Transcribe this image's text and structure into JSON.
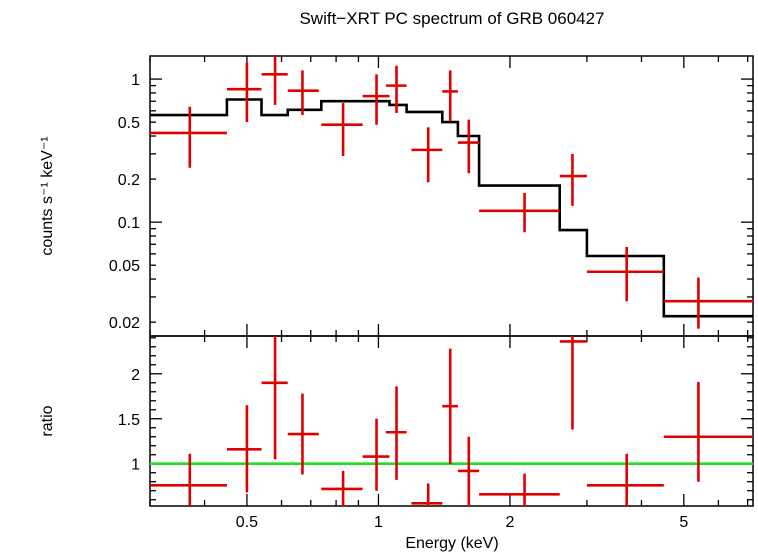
{
  "chart_data": {
    "title": "Swift−XRT PC spectrum of GRB 060427",
    "xlabel": "Energy (keV)",
    "x_scale": "log",
    "xlim": [
      0.3,
      7.2
    ],
    "x_ticks": [
      {
        "v": 0.5,
        "label": "0.5"
      },
      {
        "v": 1,
        "label": "1"
      },
      {
        "v": 2,
        "label": "2"
      },
      {
        "v": 5,
        "label": "5"
      }
    ],
    "top_panel": {
      "type": "scatter",
      "ylabel": "counts s⁻¹ keV⁻¹",
      "y_scale": "log",
      "ylim": [
        0.016,
        1.45
      ],
      "y_ticks": [
        {
          "v": 1,
          "label": "1"
        },
        {
          "v": 0.5,
          "label": "0.5"
        },
        {
          "v": 0.2,
          "label": "0.2"
        },
        {
          "v": 0.1,
          "label": "0.1"
        },
        {
          "v": 0.05,
          "label": "0.05"
        },
        {
          "v": 0.02,
          "label": "0.02"
        }
      ],
      "data_color": "#e00000",
      "model_color": "#000000",
      "data": [
        {
          "x": 0.37,
          "xlo": 0.3,
          "xhi": 0.45,
          "y": 0.42,
          "ylo": 0.24,
          "yhi": 0.64
        },
        {
          "x": 0.5,
          "xlo": 0.45,
          "xhi": 0.54,
          "y": 0.85,
          "ylo": 0.5,
          "yhi": 1.3
        },
        {
          "x": 0.58,
          "xlo": 0.54,
          "xhi": 0.62,
          "y": 1.08,
          "ylo": 0.66,
          "yhi": 1.55
        },
        {
          "x": 0.67,
          "xlo": 0.62,
          "xhi": 0.73,
          "y": 0.83,
          "ylo": 0.56,
          "yhi": 1.15
        },
        {
          "x": 0.83,
          "xlo": 0.74,
          "xhi": 0.92,
          "y": 0.48,
          "ylo": 0.29,
          "yhi": 0.68
        },
        {
          "x": 0.99,
          "xlo": 0.92,
          "xhi": 1.06,
          "y": 0.76,
          "ylo": 0.48,
          "yhi": 1.08
        },
        {
          "x": 1.1,
          "xlo": 1.04,
          "xhi": 1.16,
          "y": 0.9,
          "ylo": 0.58,
          "yhi": 1.24
        },
        {
          "x": 1.3,
          "xlo": 1.19,
          "xhi": 1.4,
          "y": 0.32,
          "ylo": 0.19,
          "yhi": 0.46
        },
        {
          "x": 1.46,
          "xlo": 1.4,
          "xhi": 1.52,
          "y": 0.82,
          "ylo": 0.51,
          "yhi": 1.15
        },
        {
          "x": 1.61,
          "xlo": 1.52,
          "xhi": 1.7,
          "y": 0.36,
          "ylo": 0.22,
          "yhi": 0.52
        },
        {
          "x": 2.16,
          "xlo": 1.7,
          "xhi": 2.6,
          "y": 0.12,
          "ylo": 0.085,
          "yhi": 0.16
        },
        {
          "x": 2.78,
          "xlo": 2.6,
          "xhi": 3.0,
          "y": 0.21,
          "ylo": 0.13,
          "yhi": 0.3
        },
        {
          "x": 3.7,
          "xlo": 3.0,
          "xhi": 4.5,
          "y": 0.045,
          "ylo": 0.028,
          "yhi": 0.067
        },
        {
          "x": 5.4,
          "xlo": 4.5,
          "xhi": 7.2,
          "y": 0.028,
          "ylo": 0.018,
          "yhi": 0.041
        }
      ],
      "model_steps": [
        {
          "xlo": 0.3,
          "xhi": 0.45,
          "y": 0.56
        },
        {
          "xlo": 0.45,
          "xhi": 0.54,
          "y": 0.72
        },
        {
          "xlo": 0.54,
          "xhi": 0.62,
          "y": 0.56
        },
        {
          "xlo": 0.62,
          "xhi": 0.74,
          "y": 0.61
        },
        {
          "xlo": 0.74,
          "xhi": 1.06,
          "y": 0.7
        },
        {
          "xlo": 1.06,
          "xhi": 1.16,
          "y": 0.66
        },
        {
          "xlo": 1.16,
          "xhi": 1.4,
          "y": 0.59
        },
        {
          "xlo": 1.4,
          "xhi": 1.52,
          "y": 0.5
        },
        {
          "xlo": 1.52,
          "xhi": 1.7,
          "y": 0.4
        },
        {
          "xlo": 1.7,
          "xhi": 2.6,
          "y": 0.18
        },
        {
          "xlo": 2.6,
          "xhi": 3.0,
          "y": 0.088
        },
        {
          "xlo": 3.0,
          "xhi": 4.5,
          "y": 0.058
        },
        {
          "xlo": 4.5,
          "xhi": 7.2,
          "y": 0.022
        }
      ]
    },
    "bottom_panel": {
      "type": "scatter",
      "ylabel": "ratio",
      "y_scale": "linear",
      "ylim": [
        0.53,
        2.42
      ],
      "y_ticks": [
        {
          "v": 1,
          "label": "1"
        },
        {
          "v": 1.5,
          "label": "1.5"
        },
        {
          "v": 2,
          "label": "2"
        }
      ],
      "reference_line": {
        "y": 1,
        "color": "#22dd22"
      },
      "data_color": "#e00000",
      "data": [
        {
          "x": 0.37,
          "xlo": 0.3,
          "xhi": 0.45,
          "y": 0.76,
          "ylo": 0.53,
          "yhi": 1.11
        },
        {
          "x": 0.5,
          "xlo": 0.45,
          "xhi": 0.54,
          "y": 1.16,
          "ylo": 0.68,
          "yhi": 1.65
        },
        {
          "x": 0.58,
          "xlo": 0.54,
          "xhi": 0.62,
          "y": 1.9,
          "ylo": 1.05,
          "yhi": 2.42
        },
        {
          "x": 0.67,
          "xlo": 0.62,
          "xhi": 0.73,
          "y": 1.33,
          "ylo": 0.88,
          "yhi": 1.78
        },
        {
          "x": 0.83,
          "xlo": 0.74,
          "xhi": 0.92,
          "y": 0.72,
          "ylo": 0.53,
          "yhi": 0.92
        },
        {
          "x": 0.99,
          "xlo": 0.92,
          "xhi": 1.06,
          "y": 1.08,
          "ylo": 0.7,
          "yhi": 1.5
        },
        {
          "x": 1.1,
          "xlo": 1.04,
          "xhi": 1.16,
          "y": 1.35,
          "ylo": 0.82,
          "yhi": 1.86
        },
        {
          "x": 1.3,
          "xlo": 1.19,
          "xhi": 1.4,
          "y": 0.56,
          "ylo": 0.53,
          "yhi": 0.78
        },
        {
          "x": 1.46,
          "xlo": 1.4,
          "xhi": 1.52,
          "y": 1.64,
          "ylo": 1.0,
          "yhi": 2.28
        },
        {
          "x": 1.61,
          "xlo": 1.52,
          "xhi": 1.7,
          "y": 0.92,
          "ylo": 0.53,
          "yhi": 1.3
        },
        {
          "x": 2.16,
          "xlo": 1.7,
          "xhi": 2.6,
          "y": 0.66,
          "ylo": 0.53,
          "yhi": 0.89
        },
        {
          "x": 2.78,
          "xlo": 2.6,
          "xhi": 3.0,
          "y": 2.36,
          "ylo": 1.38,
          "yhi": 2.42
        },
        {
          "x": 3.7,
          "xlo": 3.0,
          "xhi": 4.5,
          "y": 0.76,
          "ylo": 0.53,
          "yhi": 1.11
        },
        {
          "x": 5.4,
          "xlo": 4.5,
          "xhi": 7.2,
          "y": 1.3,
          "ylo": 0.8,
          "yhi": 1.91
        }
      ]
    }
  }
}
